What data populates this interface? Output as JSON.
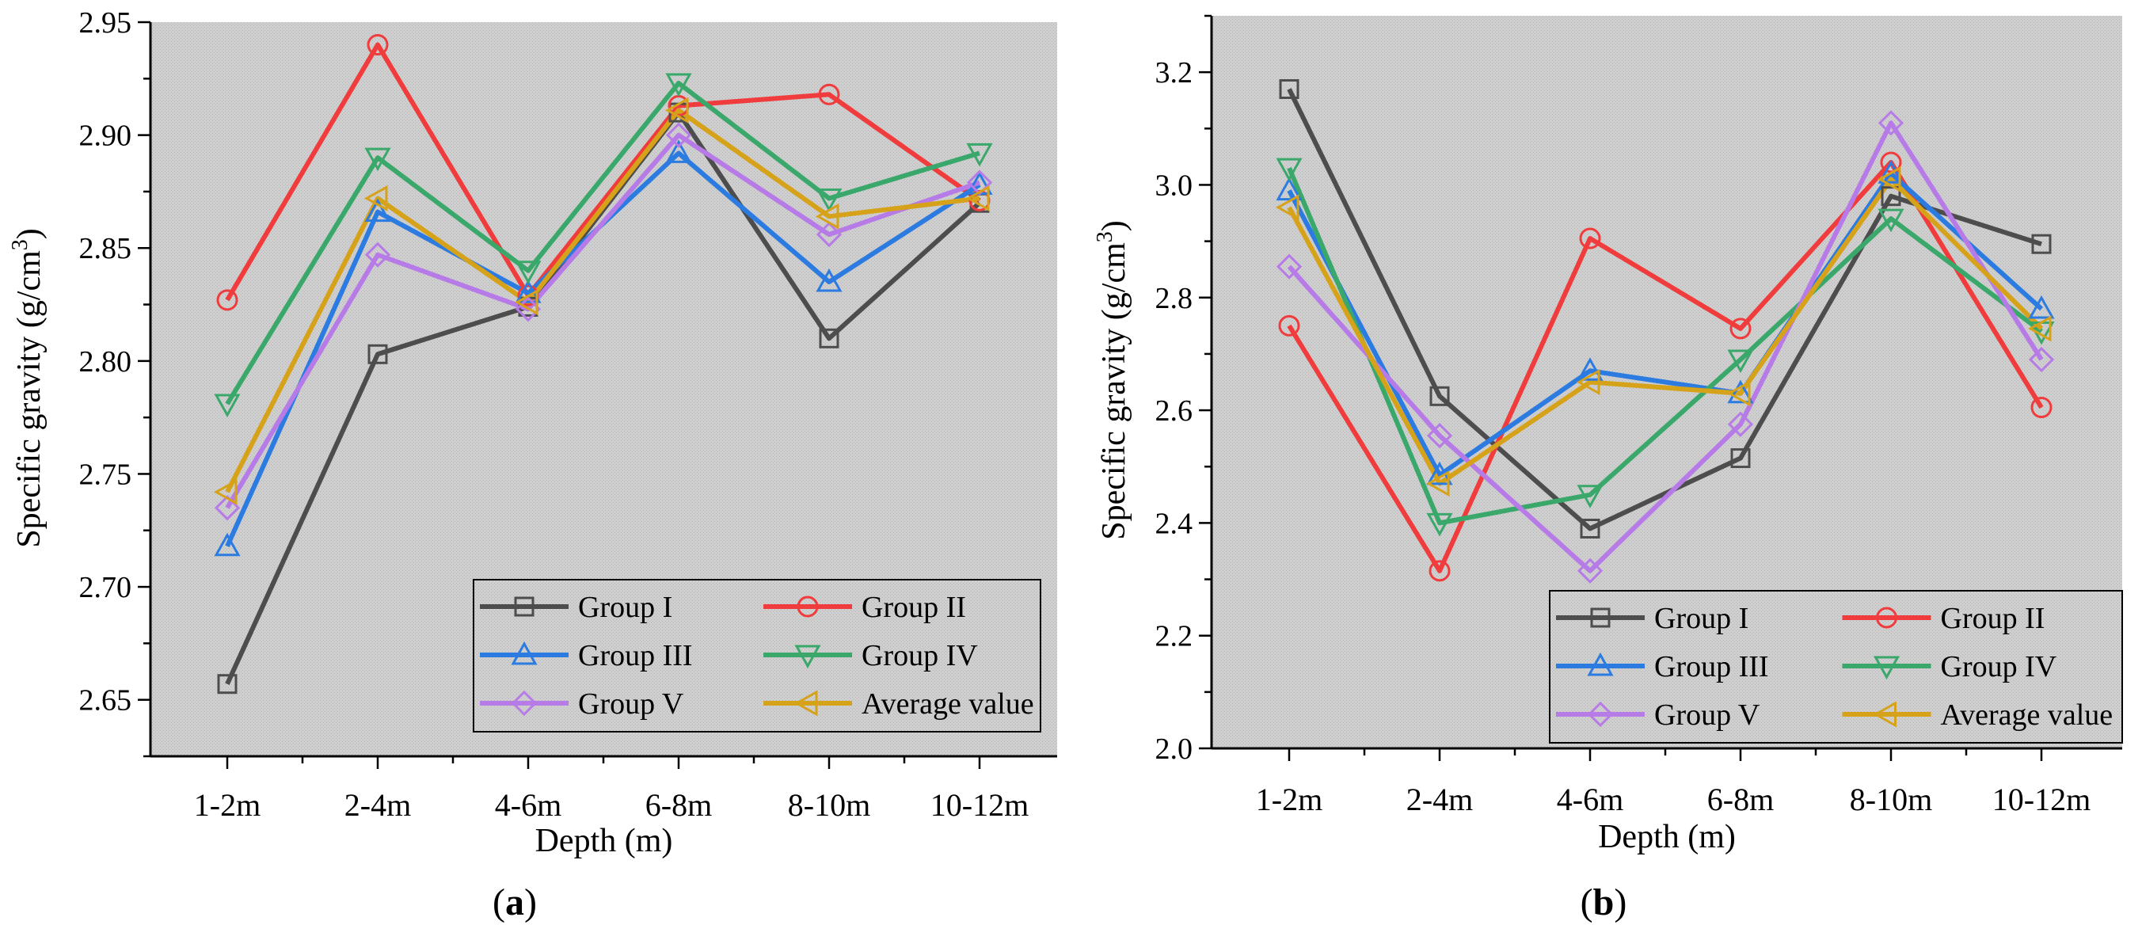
{
  "chart_data": [
    {
      "type": "line",
      "panel_label": "a",
      "title": "",
      "xlabel": "Depth (m)",
      "ylabel": "Specific gravity (g/cm",
      "ylabel_sup": "3",
      "ylabel_close": ")",
      "categories": [
        "1-2m",
        "2-4m",
        "4-6m",
        "6-8m",
        "8-10m",
        "10-12m"
      ],
      "ylim": [
        2.625,
        2.95
      ],
      "yticks": [
        2.65,
        2.7,
        2.75,
        2.8,
        2.85,
        2.9,
        2.95
      ],
      "ytick_labels": [
        "2.65",
        "2.70",
        "2.75",
        "2.80",
        "2.85",
        "2.90",
        "2.95"
      ],
      "legend": "bottom-right",
      "series": [
        {
          "name": "Group I",
          "color": "#4d4d4d",
          "marker": "square",
          "values": [
            2.657,
            2.803,
            2.824,
            2.91,
            2.81,
            2.87
          ]
        },
        {
          "name": "Group II",
          "color": "#f03c3c",
          "marker": "circle",
          "values": [
            2.827,
            2.94,
            2.829,
            2.913,
            2.918,
            2.871
          ]
        },
        {
          "name": "Group III",
          "color": "#2c7be0",
          "marker": "triangle-up",
          "values": [
            2.718,
            2.866,
            2.83,
            2.892,
            2.835,
            2.878
          ]
        },
        {
          "name": "Group IV",
          "color": "#3aa86a",
          "marker": "triangle-down",
          "values": [
            2.781,
            2.89,
            2.84,
            2.923,
            2.872,
            2.892
          ]
        },
        {
          "name": "Group V",
          "color": "#b77be8",
          "marker": "diamond",
          "values": [
            2.735,
            2.847,
            2.823,
            2.9,
            2.856,
            2.879
          ]
        },
        {
          "name": "Average value",
          "color": "#d6a21a",
          "marker": "triangle-left",
          "values": [
            2.742,
            2.872,
            2.826,
            2.911,
            2.864,
            2.872
          ]
        }
      ]
    },
    {
      "type": "line",
      "panel_label": "b",
      "title": "",
      "xlabel": "Depth (m)",
      "ylabel": "Specific gravity (g/cm",
      "ylabel_sup": "3",
      "ylabel_close": ")",
      "categories": [
        "1-2m",
        "2-4m",
        "4-6m",
        "6-8m",
        "8-10m",
        "10-12m"
      ],
      "ylim": [
        2.0,
        3.3
      ],
      "yticks": [
        2.0,
        2.2,
        2.4,
        2.6,
        2.8,
        3.0,
        3.2
      ],
      "ytick_labels": [
        "2.0",
        "2.2",
        "2.4",
        "2.6",
        "2.8",
        "3.0",
        "3.2"
      ],
      "legend": "bottom-right",
      "series": [
        {
          "name": "Group I",
          "color": "#4d4d4d",
          "marker": "square",
          "values": [
            3.17,
            2.625,
            2.39,
            2.515,
            2.98,
            2.895
          ]
        },
        {
          "name": "Group II",
          "color": "#f03c3c",
          "marker": "circle",
          "values": [
            2.75,
            2.315,
            2.905,
            2.745,
            3.04,
            2.605
          ]
        },
        {
          "name": "Group III",
          "color": "#2c7be0",
          "marker": "triangle-up",
          "values": [
            2.99,
            2.485,
            2.67,
            2.63,
            3.02,
            2.78
          ]
        },
        {
          "name": "Group IV",
          "color": "#3aa86a",
          "marker": "triangle-down",
          "values": [
            3.03,
            2.4,
            2.45,
            2.69,
            2.94,
            2.74
          ]
        },
        {
          "name": "Group V",
          "color": "#b77be8",
          "marker": "diamond",
          "values": [
            2.855,
            2.555,
            2.315,
            2.575,
            3.11,
            2.69
          ]
        },
        {
          "name": "Average value",
          "color": "#d6a21a",
          "marker": "triangle-left",
          "values": [
            2.96,
            2.47,
            2.65,
            2.63,
            3.01,
            2.745
          ]
        }
      ]
    }
  ]
}
